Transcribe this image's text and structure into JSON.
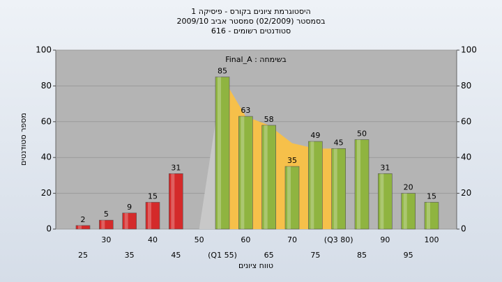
{
  "chart_data": {
    "type": "bar",
    "title": [
      "היסטוגרמת ציונים בקורס - פיסיקה 1",
      "בסמסטר  (02/2009)  סמסטר אביב 2009/10",
      "סטודנטים רשומים - 616"
    ],
    "annotation": "בשימחה : Final_A",
    "x_label": "טווח ציונים",
    "y_label": "מספר סטודנטים",
    "categories": [
      "25",
      "30",
      "35",
      "40",
      "45",
      "50",
      "(Q1 55)",
      "60",
      "65",
      "70",
      "75",
      "(Q3 80)",
      "85",
      "90",
      "95",
      "100"
    ],
    "values": [
      2,
      5,
      9,
      15,
      31,
      null,
      85,
      63,
      58,
      35,
      49,
      45,
      50,
      31,
      20,
      15
    ],
    "colors": [
      "#d42a2a",
      "#d42a2a",
      "#d42a2a",
      "#d42a2a",
      "#d42a2a",
      "#d42a2a",
      "#8fb440",
      "#8fb440",
      "#8fb440",
      "#8fb440",
      "#8fb440",
      "#8fb440",
      "#8fb440",
      "#8fb440",
      "#8fb440",
      "#8fb440"
    ],
    "areas": [
      {
        "color": "#c8c8c8",
        "values": [
          null,
          null,
          null,
          null,
          null,
          0,
          85,
          null,
          null,
          null,
          null,
          null,
          null,
          null,
          null,
          null
        ]
      },
      {
        "color": "#f6c04a",
        "values": [
          null,
          null,
          null,
          null,
          null,
          null,
          85,
          63,
          58,
          48,
          45,
          45,
          null,
          null,
          null,
          null
        ]
      }
    ],
    "ylim": [
      0,
      100
    ],
    "yticks": [
      0,
      20,
      40,
      60,
      80,
      100
    ],
    "grid": true
  }
}
